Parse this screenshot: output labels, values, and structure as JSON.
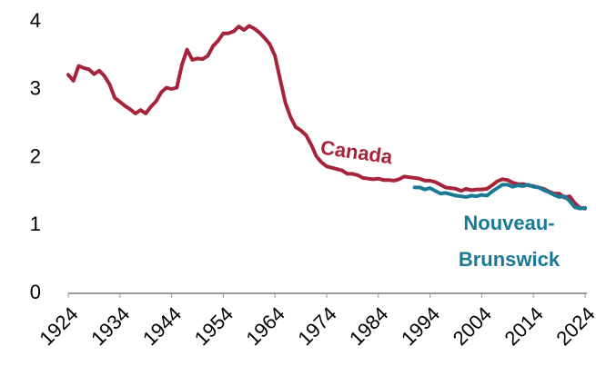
{
  "chart_data": {
    "type": "line",
    "x": [
      1924,
      1925,
      1926,
      1927,
      1928,
      1929,
      1930,
      1931,
      1932,
      1933,
      1934,
      1935,
      1936,
      1937,
      1938,
      1939,
      1940,
      1941,
      1942,
      1943,
      1944,
      1945,
      1946,
      1947,
      1948,
      1949,
      1950,
      1951,
      1952,
      1953,
      1954,
      1955,
      1956,
      1957,
      1958,
      1959,
      1960,
      1961,
      1962,
      1963,
      1964,
      1965,
      1966,
      1967,
      1968,
      1969,
      1970,
      1971,
      1972,
      1973,
      1974,
      1975,
      1976,
      1977,
      1978,
      1979,
      1980,
      1981,
      1982,
      1983,
      1984,
      1985,
      1986,
      1987,
      1988,
      1989,
      1990,
      1991,
      1992,
      1993,
      1994,
      1995,
      1996,
      1997,
      1998,
      1999,
      2000,
      2001,
      2002,
      2003,
      2004,
      2005,
      2006,
      2007,
      2008,
      2009,
      2010,
      2011,
      2012,
      2013,
      2014,
      2015,
      2016,
      2017,
      2018,
      2019,
      2020,
      2021,
      2022,
      2023,
      2024
    ],
    "series": [
      {
        "name": "Canada",
        "color": "#a6233a",
        "values": [
          3.22,
          3.13,
          3.35,
          3.32,
          3.3,
          3.23,
          3.28,
          3.2,
          3.08,
          2.88,
          2.82,
          2.76,
          2.71,
          2.65,
          2.7,
          2.65,
          2.75,
          2.83,
          2.96,
          3.03,
          3.01,
          3.03,
          3.37,
          3.59,
          3.44,
          3.46,
          3.45,
          3.5,
          3.64,
          3.72,
          3.83,
          3.83,
          3.86,
          3.93,
          3.88,
          3.94,
          3.9,
          3.84,
          3.76,
          3.67,
          3.5,
          3.15,
          2.81,
          2.6,
          2.45,
          2.4,
          2.33,
          2.19,
          2.02,
          1.93,
          1.87,
          1.85,
          1.83,
          1.81,
          1.76,
          1.76,
          1.74,
          1.7,
          1.69,
          1.68,
          1.69,
          1.67,
          1.67,
          1.66,
          1.68,
          1.72,
          1.71,
          1.7,
          1.69,
          1.66,
          1.66,
          1.64,
          1.6,
          1.56,
          1.55,
          1.54,
          1.51,
          1.54,
          1.52,
          1.53,
          1.53,
          1.54,
          1.59,
          1.65,
          1.68,
          1.67,
          1.63,
          1.61,
          1.61,
          1.59,
          1.58,
          1.56,
          1.54,
          1.5,
          1.47,
          1.47,
          1.41,
          1.43,
          1.33,
          1.26,
          1.25
        ]
      },
      {
        "name": "Nouveau-Brunswick",
        "color": "#1a7a95",
        "values": [
          null,
          null,
          null,
          null,
          null,
          null,
          null,
          null,
          null,
          null,
          null,
          null,
          null,
          null,
          null,
          null,
          null,
          null,
          null,
          null,
          null,
          null,
          null,
          null,
          null,
          null,
          null,
          null,
          null,
          null,
          null,
          null,
          null,
          null,
          null,
          null,
          null,
          null,
          null,
          null,
          null,
          null,
          null,
          null,
          null,
          null,
          null,
          null,
          null,
          null,
          null,
          null,
          null,
          null,
          null,
          null,
          null,
          null,
          null,
          null,
          null,
          null,
          null,
          null,
          null,
          null,
          null,
          1.56,
          1.56,
          1.53,
          1.55,
          1.51,
          1.47,
          1.48,
          1.46,
          1.44,
          1.43,
          1.42,
          1.44,
          1.43,
          1.45,
          1.44,
          1.5,
          1.55,
          1.6,
          1.6,
          1.57,
          1.59,
          1.58,
          1.6,
          1.57,
          1.56,
          1.52,
          1.49,
          1.45,
          1.42,
          1.43,
          1.36,
          1.27,
          1.25,
          1.26
        ]
      }
    ],
    "xlim": [
      1924,
      2024
    ],
    "xticks": [
      1924,
      1934,
      1944,
      1954,
      1964,
      1974,
      1984,
      1994,
      2004,
      2014,
      2024
    ],
    "ylim": [
      0,
      4
    ],
    "yticks": [
      0,
      1,
      2,
      3,
      4
    ]
  }
}
